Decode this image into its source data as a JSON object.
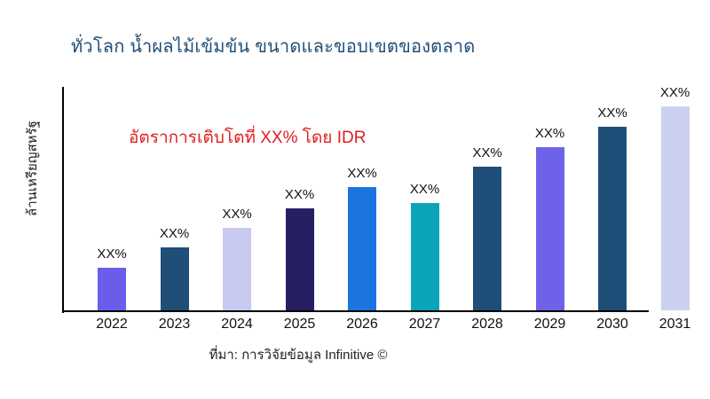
{
  "page": {
    "background_color": "#ffffff"
  },
  "title": {
    "text": "ทั่วโลก น้ำผลไม้เข้มข้น ขนาดและขอบเขตของตลาด",
    "color": "#1f4e79"
  },
  "annotation": {
    "text": "อัตราการเติบโตที่ XX% โดย IDR",
    "color": "#e01e20"
  },
  "y_axis": {
    "label": "ล้านเหรียญสหรัฐ"
  },
  "source": {
    "text": "ที่มา: การวิจัยข้อมูล Infinitive ©"
  },
  "chart_data": {
    "type": "bar",
    "title": "ทั่วโลก น้ำผลไม้เข้มข้น ขนาดและขอบเขตของตลาด",
    "xlabel": "",
    "ylabel": "ล้านเหรียญสหรัฐ",
    "categories": [
      "2022",
      "2023",
      "2024",
      "2025",
      "2026",
      "2027",
      "2028",
      "2029",
      "2030",
      "2031"
    ],
    "bar_value_labels": [
      "XX%",
      "XX%",
      "XX%",
      "XX%",
      "XX%",
      "XX%",
      "XX%",
      "XX%",
      "XX%",
      "XX%"
    ],
    "values_relative": [
      48,
      71,
      93,
      115,
      139,
      121,
      162,
      184,
      207,
      230
    ],
    "bar_colors": [
      "#6c5cec",
      "#1f4e79",
      "#c7c9ef",
      "#262063",
      "#1b75de",
      "#0aa3ba",
      "#1f4e79",
      "#6e62e8",
      "#1f4e79",
      "#ccd0f0"
    ],
    "annotation": "อัตราการเติบโตที่ XX% โดย IDR",
    "annotation_color": "#e01e20",
    "axis_color": "#000000",
    "grid": false,
    "legend": false,
    "y_tick_labels_visible": false,
    "x_axis_line_ends_before_last_bar": true
  }
}
